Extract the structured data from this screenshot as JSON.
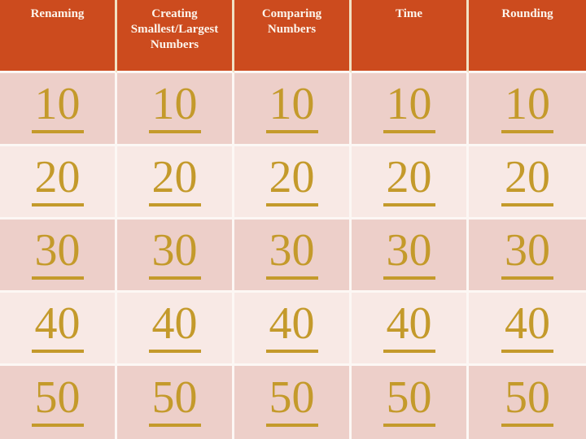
{
  "board": {
    "columns": [
      {
        "header": "Renaming",
        "values": [
          "10",
          "20",
          "30",
          "40",
          "50"
        ]
      },
      {
        "header": "Creating Smallest/Largest Numbers",
        "values": [
          "10",
          "20",
          "30",
          "40",
          "50"
        ]
      },
      {
        "header": "Comparing Numbers",
        "values": [
          "10",
          "20",
          "30",
          "40",
          "50"
        ]
      },
      {
        "header": "Time",
        "values": [
          "10",
          "20",
          "30",
          "40",
          "50"
        ]
      },
      {
        "header": "Rounding",
        "values": [
          "10",
          "20",
          "30",
          "40",
          "50"
        ]
      }
    ],
    "colors": {
      "header_bg": "#CC4B1E",
      "header_text": "#FCF5EC",
      "row_dark": "#EDCFC9",
      "row_light": "#F8E9E5",
      "link": "#C49A2B",
      "divider_header": "#F1E1C3",
      "divider_body": "#FCF7F4"
    }
  }
}
